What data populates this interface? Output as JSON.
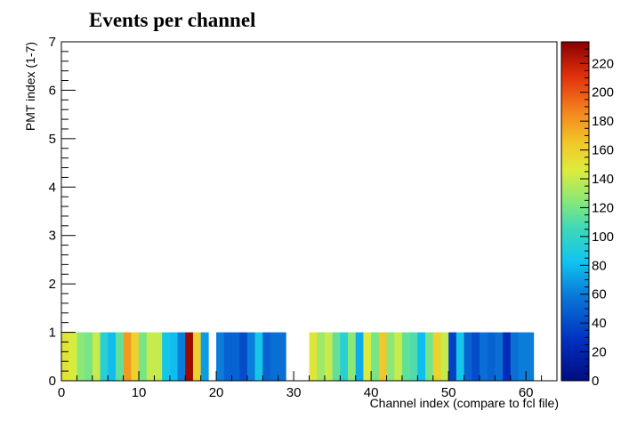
{
  "chart_data": {
    "type": "heatmap",
    "title": "Events per channel",
    "xlabel": "Channel index (compare to fcl file)",
    "ylabel": "PMT index (1-7)",
    "xlim": [
      0,
      64
    ],
    "ylim": [
      0,
      7
    ],
    "x_ticks": [
      "0",
      "10",
      "20",
      "30",
      "40",
      "50",
      "60"
    ],
    "y_ticks": [
      "0",
      "1",
      "2",
      "3",
      "4",
      "5",
      "6",
      "7"
    ],
    "z_range": [
      0,
      235
    ],
    "z_ticks": [
      "0",
      "20",
      "40",
      "60",
      "80",
      "100",
      "120",
      "140",
      "160",
      "180",
      "200",
      "220"
    ],
    "colormap": "rainbow (blue to red)",
    "grid": false,
    "row": "y bin 0–1",
    "cells": [
      {
        "x": 0,
        "value": 150
      },
      {
        "x": 1,
        "value": 145
      },
      {
        "x": 2,
        "value": 125
      },
      {
        "x": 3,
        "value": 120
      },
      {
        "x": 4,
        "value": 140
      },
      {
        "x": 5,
        "value": 95
      },
      {
        "x": 6,
        "value": 80
      },
      {
        "x": 7,
        "value": 115
      },
      {
        "x": 8,
        "value": 180
      },
      {
        "x": 9,
        "value": 160
      },
      {
        "x": 10,
        "value": 120
      },
      {
        "x": 11,
        "value": 140
      },
      {
        "x": 12,
        "value": 140
      },
      {
        "x": 13,
        "value": 85
      },
      {
        "x": 14,
        "value": 80
      },
      {
        "x": 15,
        "value": 60
      },
      {
        "x": 16,
        "value": 230
      },
      {
        "x": 17,
        "value": 160
      },
      {
        "x": 18,
        "value": 70
      },
      {
        "x": 19,
        "value": 0
      },
      {
        "x": 20,
        "value": 60
      },
      {
        "x": 21,
        "value": 50
      },
      {
        "x": 22,
        "value": 50
      },
      {
        "x": 23,
        "value": 40
      },
      {
        "x": 24,
        "value": 60
      },
      {
        "x": 25,
        "value": 85
      },
      {
        "x": 26,
        "value": 50
      },
      {
        "x": 27,
        "value": 55
      },
      {
        "x": 28,
        "value": 55
      },
      {
        "x": 29,
        "value": 0
      },
      {
        "x": 30,
        "value": 0
      },
      {
        "x": 31,
        "value": 0
      },
      {
        "x": 32,
        "value": 150
      },
      {
        "x": 33,
        "value": 130
      },
      {
        "x": 34,
        "value": 140
      },
      {
        "x": 35,
        "value": 115
      },
      {
        "x": 36,
        "value": 95
      },
      {
        "x": 37,
        "value": 125
      },
      {
        "x": 38,
        "value": 75
      },
      {
        "x": 39,
        "value": 145
      },
      {
        "x": 40,
        "value": 120
      },
      {
        "x": 41,
        "value": 165
      },
      {
        "x": 42,
        "value": 125
      },
      {
        "x": 43,
        "value": 140
      },
      {
        "x": 44,
        "value": 115
      },
      {
        "x": 45,
        "value": 110
      },
      {
        "x": 46,
        "value": 80
      },
      {
        "x": 47,
        "value": 120
      },
      {
        "x": 48,
        "value": 160
      },
      {
        "x": 49,
        "value": 140
      },
      {
        "x": 50,
        "value": 35
      },
      {
        "x": 51,
        "value": 85
      },
      {
        "x": 52,
        "value": 50
      },
      {
        "x": 53,
        "value": 40
      },
      {
        "x": 54,
        "value": 55
      },
      {
        "x": 55,
        "value": 50
      },
      {
        "x": 56,
        "value": 55
      },
      {
        "x": 57,
        "value": 25
      },
      {
        "x": 58,
        "value": 55
      },
      {
        "x": 59,
        "value": 60
      },
      {
        "x": 60,
        "value": 60
      }
    ]
  }
}
